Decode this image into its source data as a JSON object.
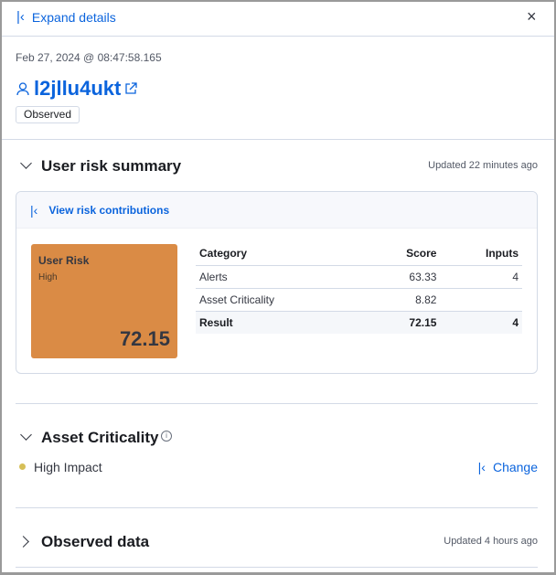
{
  "header": {
    "expand_label": "Expand details"
  },
  "entity": {
    "timestamp": "Feb 27, 2024 @ 08:47:58.165",
    "name": "l2jllu4ukt",
    "badge": "Observed"
  },
  "risk": {
    "title": "User risk summary",
    "updated": "Updated 22 minutes ago",
    "view_label": "View risk contributions",
    "card": {
      "title": "User Risk",
      "level": "High",
      "score": "72.15",
      "color": "#da8b45"
    },
    "table": {
      "headers": [
        "Category",
        "Score",
        "Inputs"
      ],
      "rows": [
        [
          "Alerts",
          "63.33",
          "4"
        ],
        [
          "Asset Criticality",
          "8.82",
          ""
        ]
      ],
      "result": [
        "Result",
        "72.15",
        "4"
      ]
    }
  },
  "asset": {
    "title": "Asset Criticality",
    "value": "High Impact",
    "dot_color": "#d6bf57",
    "change_label": "Change"
  },
  "observed": {
    "title": "Observed data",
    "updated": "Updated 4 hours ago"
  }
}
